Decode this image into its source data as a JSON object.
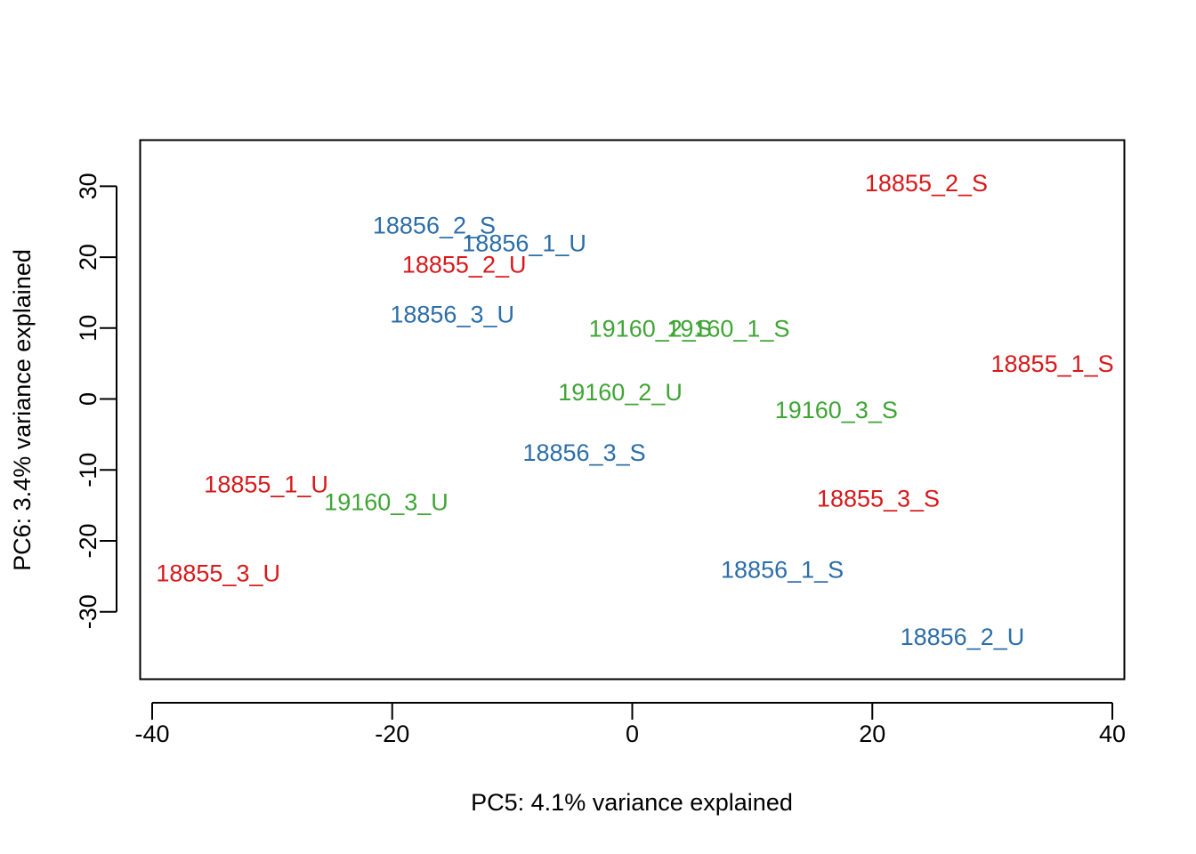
{
  "chart_data": {
    "type": "scatter",
    "title": "",
    "xlabel": "PC5: 4.1% variance explained",
    "ylabel": "PC6: 3.4% variance explained",
    "xlim": [
      -41,
      41
    ],
    "ylim": [
      -39.5,
      36.5
    ],
    "xticks": [
      -40,
      -20,
      0,
      20,
      40
    ],
    "yticks": [
      -30,
      -20,
      -10,
      0,
      10,
      20,
      30
    ],
    "grid": false,
    "legend": "none",
    "colors": {
      "18855": "#d7191c",
      "18856": "#2c6ea8",
      "19160": "#3fa535"
    },
    "points": [
      {
        "label": "18855_2_S",
        "group": "18855",
        "x": 24.5,
        "y": 30.5
      },
      {
        "label": "18856_2_S",
        "group": "18856",
        "x": -16.5,
        "y": 24.5
      },
      {
        "label": "18856_1_U",
        "group": "18856",
        "x": -9.0,
        "y": 22.0
      },
      {
        "label": "18855_2_U",
        "group": "18855",
        "x": -14.0,
        "y": 19.0
      },
      {
        "label": "18856_3_U",
        "group": "18856",
        "x": -15.0,
        "y": 12.0
      },
      {
        "label": "19160_2_S",
        "group": "19160",
        "x": 1.5,
        "y": 10.0
      },
      {
        "label": "19160_1_S",
        "group": "19160",
        "x": 8.0,
        "y": 10.0
      },
      {
        "label": "18855_1_S",
        "group": "18855",
        "x": 35.0,
        "y": 5.0
      },
      {
        "label": "19160_2_U",
        "group": "19160",
        "x": -1.0,
        "y": 1.0
      },
      {
        "label": "19160_3_S",
        "group": "19160",
        "x": 17.0,
        "y": -1.5
      },
      {
        "label": "18856_3_S",
        "group": "18856",
        "x": -4.0,
        "y": -7.5
      },
      {
        "label": "18855_1_U",
        "group": "18855",
        "x": -30.5,
        "y": -12.0
      },
      {
        "label": "18855_3_S",
        "group": "18855",
        "x": 20.5,
        "y": -14.0
      },
      {
        "label": "19160_3_U",
        "group": "19160",
        "x": -20.5,
        "y": -14.5
      },
      {
        "label": "18856_1_S",
        "group": "18856",
        "x": 12.5,
        "y": -24.0
      },
      {
        "label": "18855_3_U",
        "group": "18855",
        "x": -34.5,
        "y": -24.5
      },
      {
        "label": "18856_2_U",
        "group": "18856",
        "x": 27.5,
        "y": -33.5
      }
    ]
  }
}
